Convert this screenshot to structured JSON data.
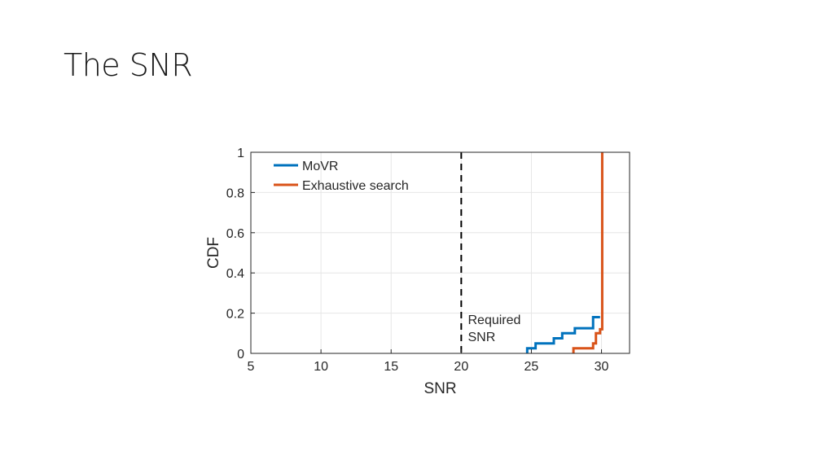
{
  "slide": {
    "title": "The SNR"
  },
  "chart_data": {
    "type": "line",
    "xlabel": "SNR",
    "ylabel": "CDF",
    "xlim": [
      5,
      32
    ],
    "ylim": [
      0,
      1
    ],
    "xticks": [
      5,
      10,
      15,
      20,
      25,
      30
    ],
    "yticks": [
      0,
      0.2,
      0.4,
      0.6,
      0.8,
      1
    ],
    "xtick_labels": [
      "5",
      "10",
      "15",
      "20",
      "25",
      "30"
    ],
    "ytick_labels": [
      "0",
      "0.2",
      "0.4",
      "0.6",
      "0.8",
      "1"
    ],
    "grid": true,
    "legend_position": "top-left",
    "series": [
      {
        "name": "MoVR",
        "color": "#0072BD",
        "style": "step",
        "x": [
          24.7,
          24.7,
          25.3,
          25.3,
          26.6,
          26.6,
          27.2,
          27.2,
          28.1,
          28.1,
          29.4,
          29.4,
          29.9
        ],
        "y": [
          0,
          0.025,
          0.025,
          0.05,
          0.05,
          0.075,
          0.075,
          0.1,
          0.1,
          0.125,
          0.125,
          0.18,
          0.18
        ]
      },
      {
        "name": "Exhaustive search",
        "color": "#D95319",
        "style": "step",
        "x": [
          28.0,
          28.0,
          29.4,
          29.4,
          29.6,
          29.6,
          29.9,
          29.9,
          30.05,
          30.05
        ],
        "y": [
          0,
          0.025,
          0.025,
          0.05,
          0.05,
          0.1,
          0.1,
          0.12,
          0.12,
          1.0
        ]
      }
    ],
    "vline": {
      "x": 20,
      "style": "dashed",
      "color": "#000000"
    },
    "annotation": {
      "lines": [
        "Required",
        "SNR"
      ],
      "x": 20.3,
      "y": [
        0.17,
        0.085
      ]
    }
  }
}
